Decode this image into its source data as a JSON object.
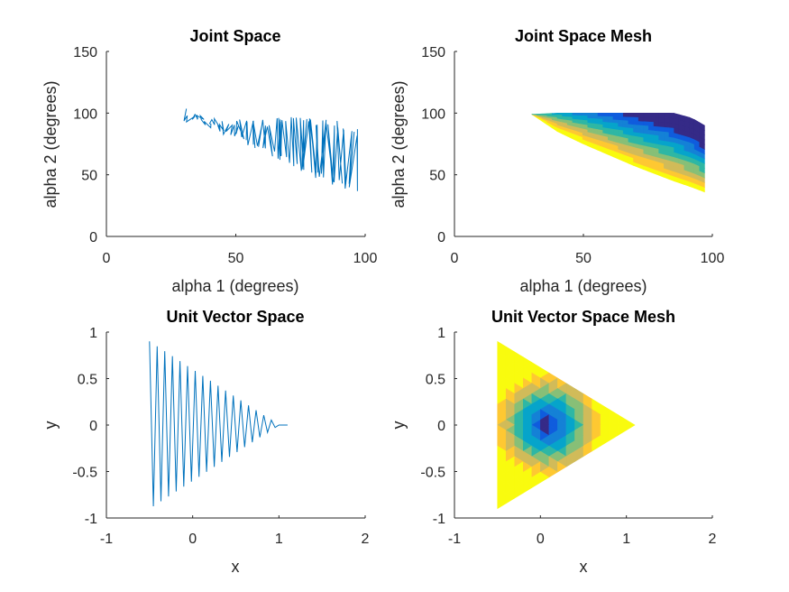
{
  "chart_data": [
    {
      "id": "joint-space",
      "type": "line",
      "title": "Joint Space",
      "xlabel": "alpha 1 (degrees)",
      "ylabel": "alpha 2 (degrees)",
      "xlim": [
        0,
        100
      ],
      "ylim": [
        0,
        150
      ],
      "xticks": [
        "0",
        "50",
        "100"
      ],
      "yticks": [
        "0",
        "50",
        "100",
        "150"
      ],
      "grid": false,
      "series_color": "#0072BD",
      "series": [
        {
          "x": [
            30,
            38,
            45,
            52,
            57,
            62,
            66,
            70,
            74,
            78,
            82,
            86,
            90,
            93,
            96,
            97
          ],
          "top_y": [
            99,
            97,
            96,
            95,
            95,
            95,
            96,
            97,
            97,
            97,
            96,
            96,
            93,
            90,
            88,
            87
          ],
          "bottom_y": [
            99,
            90,
            83,
            76,
            70,
            66,
            62,
            58,
            54,
            50,
            46,
            43,
            40,
            38,
            36,
            35
          ]
        }
      ]
    },
    {
      "id": "joint-space-mesh",
      "type": "heatmap",
      "title": "Joint Space Mesh",
      "xlabel": "alpha 1 (degrees)",
      "ylabel": "alpha 2 (degrees)",
      "xlim": [
        0,
        100
      ],
      "ylim": [
        0,
        150
      ],
      "xticks": [
        "0",
        "50",
        "100"
      ],
      "yticks": [
        "0",
        "50",
        "100",
        "150"
      ],
      "grid": false,
      "region": {
        "x": [
          30,
          40,
          50,
          60,
          70,
          80,
          85,
          92,
          97
        ],
        "top_y": [
          99,
          100,
          100,
          100,
          100,
          100,
          100,
          96,
          90
        ],
        "bottom_y": [
          99,
          85,
          75,
          66,
          57,
          49,
          45,
          40,
          36
        ]
      },
      "colormap": [
        "#352A87",
        "#0F5CDD",
        "#1481D6",
        "#06A4CA",
        "#2EB7A4",
        "#87BF77",
        "#D1BB59",
        "#FEC832",
        "#F9FB0E"
      ]
    },
    {
      "id": "unit-vector-space",
      "type": "line",
      "title": "Unit Vector Space",
      "xlabel": "x",
      "ylabel": "y",
      "xlim": [
        -1,
        2
      ],
      "ylim": [
        -1,
        1
      ],
      "xticks": [
        "-1",
        "0",
        "1",
        "2"
      ],
      "yticks": [
        "-1",
        "-0.5",
        "0",
        "0.5",
        "1"
      ],
      "grid": false,
      "series_color": "#0072BD",
      "series": [
        {
          "x_start": -0.5,
          "x_end": 1.1,
          "amplitude_start": 0.9,
          "amplitude_end": 0.0
        }
      ]
    },
    {
      "id": "unit-vector-space-mesh",
      "type": "heatmap",
      "title": "Unit Vector Space Mesh",
      "xlabel": "x",
      "ylabel": "y",
      "xlim": [
        -1,
        2
      ],
      "ylim": [
        -1,
        1
      ],
      "xticks": [
        "-1",
        "0",
        "1",
        "2"
      ],
      "yticks": [
        "-1",
        "-0.5",
        "0",
        "0.5",
        "1"
      ],
      "grid": false,
      "region": {
        "vertices": [
          [
            -0.5,
            0.9
          ],
          [
            -0.5,
            -0.9
          ],
          [
            1.1,
            0.0
          ]
        ]
      },
      "colormap": [
        "#352A87",
        "#0F5CDD",
        "#1481D6",
        "#06A4CA",
        "#2EB7A4",
        "#87BF77",
        "#D1BB59",
        "#FEC832",
        "#F9FB0E"
      ]
    }
  ]
}
